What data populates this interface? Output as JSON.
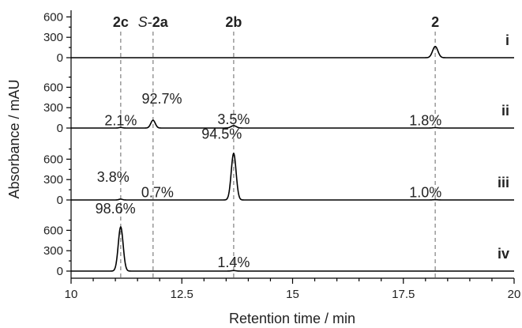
{
  "chart_data": {
    "type": "line",
    "xlabel": "Retention time / min",
    "ylabel": "Absorbance / mAU",
    "xlim": [
      10,
      20
    ],
    "x_ticks": [
      10,
      12.5,
      15,
      17.5,
      20
    ],
    "x_tick_labels": [
      "10",
      "12.5",
      "15",
      "17.5",
      "20"
    ],
    "y_ticks": [
      0,
      300,
      600
    ],
    "y_tick_labels": [
      "0",
      "300",
      "600"
    ],
    "reference_lines": [
      {
        "x": 11.12,
        "label": "2c",
        "parts": [
          {
            "text": "2c",
            "style": "bold"
          }
        ]
      },
      {
        "x": 11.85,
        "label": "S-2a",
        "parts": [
          {
            "text": "S",
            "style": "italic"
          },
          {
            "text": "-",
            "style": "normal"
          },
          {
            "text": "2a",
            "style": "bold"
          }
        ]
      },
      {
        "x": 13.67,
        "label": "2b",
        "parts": [
          {
            "text": "2b",
            "style": "bold"
          }
        ]
      },
      {
        "x": 18.22,
        "label": "2",
        "parts": [
          {
            "text": "2",
            "style": "bold"
          }
        ]
      }
    ],
    "series": [
      {
        "name": "i",
        "peaks": [
          {
            "x": 18.22,
            "height": 165,
            "width": 0.06
          }
        ],
        "labels": []
      },
      {
        "name": "ii",
        "peaks": [
          {
            "x": 11.12,
            "height": 8,
            "width": 0.04
          },
          {
            "x": 11.85,
            "height": 115,
            "width": 0.05
          },
          {
            "x": 13.67,
            "height": 35,
            "width": 0.06
          },
          {
            "x": 18.22,
            "height": 5,
            "width": 0.05
          }
        ],
        "labels": [
          {
            "text": "2.1%",
            "x": 11.12,
            "y": 40
          },
          {
            "text": "92.7%",
            "x": 12.05,
            "y": 360
          },
          {
            "text": "3.5%",
            "x": 13.67,
            "y": 60
          },
          {
            "text": "1.8%",
            "x": 18.0,
            "y": 40
          }
        ]
      },
      {
        "name": "iii",
        "peaks": [
          {
            "x": 11.12,
            "height": 12,
            "width": 0.04
          },
          {
            "x": 13.67,
            "height": 685,
            "width": 0.055
          },
          {
            "x": 18.22,
            "height": 4,
            "width": 0.05
          }
        ],
        "labels": [
          {
            "text": "3.8%",
            "x": 10.95,
            "y": 270
          },
          {
            "text": "0.7%",
            "x": 11.95,
            "y": 40
          },
          {
            "text": "94.5%",
            "x": 13.4,
            "y": 900
          },
          {
            "text": "1.0%",
            "x": 18.0,
            "y": 40
          }
        ]
      },
      {
        "name": "iv",
        "peaks": [
          {
            "x": 11.12,
            "height": 650,
            "width": 0.055
          },
          {
            "x": 13.67,
            "height": 8,
            "width": 0.05
          }
        ],
        "labels": [
          {
            "text": "98.6%",
            "x": 11.0,
            "y": 850
          },
          {
            "text": "1.4%",
            "x": 13.67,
            "y": 60
          }
        ]
      }
    ]
  }
}
